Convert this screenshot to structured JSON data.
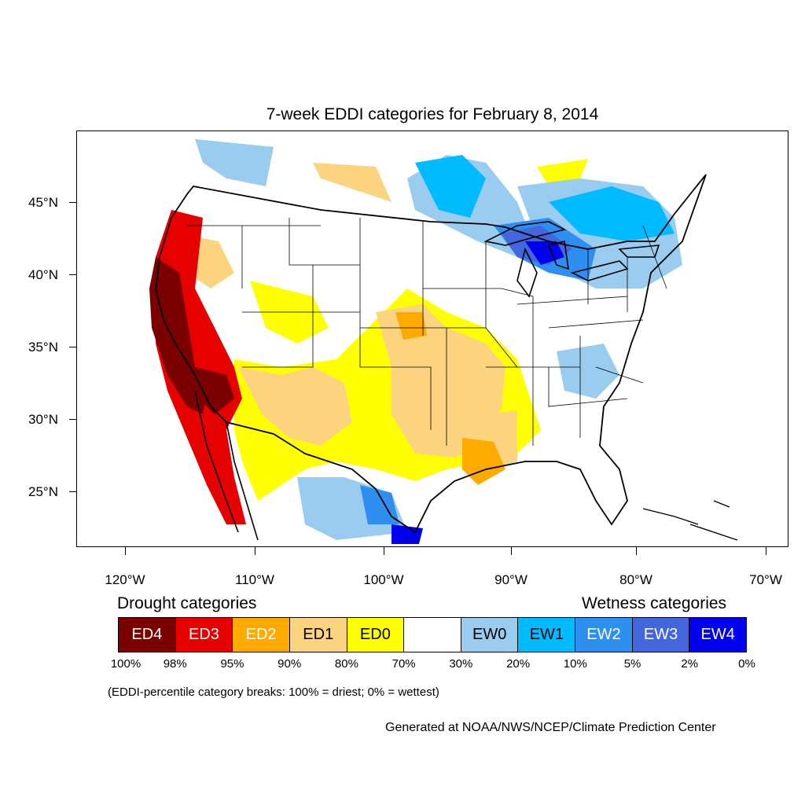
{
  "title": "7-week EDDI categories for February 8, 2014",
  "lat_labels": [
    "45°N",
    "40°N",
    "35°N",
    "30°N",
    "25°N"
  ],
  "lon_labels": [
    "120°W",
    "110°W",
    "100°W",
    "90°W",
    "80°W",
    "70°W"
  ],
  "legend": {
    "drought_heading": "Drought categories",
    "wetness_heading": "Wetness categories",
    "categories": [
      {
        "label": "ED4",
        "color": "#7a0000",
        "text_color": "#ffffff"
      },
      {
        "label": "ED3",
        "color": "#e60000",
        "text_color": "#ffffff"
      },
      {
        "label": "ED2",
        "color": "#ffaa00",
        "text_color": "#ffffff"
      },
      {
        "label": "ED1",
        "color": "#fcd37f",
        "text_color": "#000000"
      },
      {
        "label": "ED0",
        "color": "#ffff00",
        "text_color": "#000000"
      },
      {
        "label": "",
        "color": "#ffffff",
        "text_color": "#000000"
      },
      {
        "label": "EW0",
        "color": "#99ccee",
        "text_color": "#000000"
      },
      {
        "label": "EW1",
        "color": "#00bbff",
        "text_color": "#000000"
      },
      {
        "label": "EW2",
        "color": "#2f8ff0",
        "text_color": "#ffffff"
      },
      {
        "label": "EW3",
        "color": "#4466dd",
        "text_color": "#ffffff"
      },
      {
        "label": "EW4",
        "color": "#0000ee",
        "text_color": "#ffffff"
      }
    ],
    "breaks": [
      "100%",
      "98%",
      "95%",
      "90%",
      "80%",
      "70%",
      "30%",
      "20%",
      "10%",
      "5%",
      "2%",
      "0%"
    ]
  },
  "note": "(EDDI-percentile category breaks: 100% = driest; 0% = wettest)",
  "credit": "Generated at NOAA/NWS/NCEP/Climate Prediction Center"
}
